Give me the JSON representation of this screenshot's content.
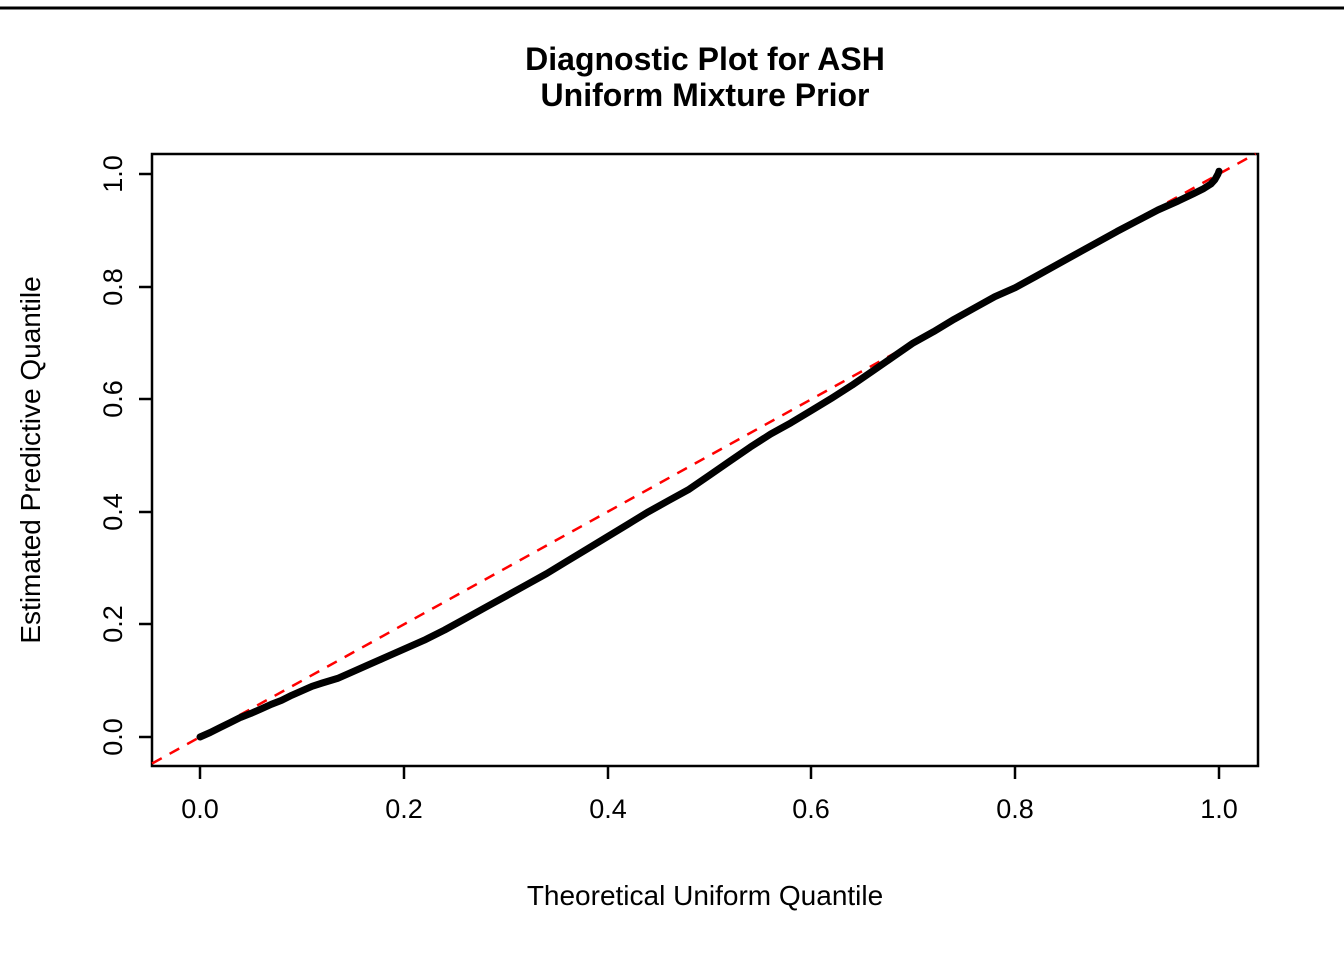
{
  "chart_data": {
    "type": "line",
    "title": "Diagnostic Plot for ASH",
    "subtitle": "Uniform Mixture Prior",
    "xlabel": "Theoretical Uniform Quantile",
    "ylabel": "Estimated Predictive Quantile",
    "xlim": [
      0,
      1
    ],
    "ylim": [
      0,
      1
    ],
    "grid": false,
    "legend": "none",
    "xtick_labels": [
      "0.0",
      "0.2",
      "0.4",
      "0.6",
      "0.8",
      "1.0"
    ],
    "ytick_labels": [
      "0.0",
      "0.2",
      "0.4",
      "0.6",
      "0.8",
      "1.0"
    ],
    "series": [
      {
        "name": "estimated-predictive-quantile-curve",
        "color": "#000000",
        "style": "solid",
        "width": 7,
        "points": [
          [
            0.0,
            0.0
          ],
          [
            0.01,
            0.008
          ],
          [
            0.02,
            0.017
          ],
          [
            0.03,
            0.026
          ],
          [
            0.04,
            0.035
          ],
          [
            0.05,
            0.042
          ],
          [
            0.06,
            0.05
          ],
          [
            0.07,
            0.058
          ],
          [
            0.08,
            0.065
          ],
          [
            0.09,
            0.074
          ],
          [
            0.1,
            0.082
          ],
          [
            0.11,
            0.09
          ],
          [
            0.12,
            0.096
          ],
          [
            0.135,
            0.104
          ],
          [
            0.15,
            0.116
          ],
          [
            0.165,
            0.128
          ],
          [
            0.18,
            0.14
          ],
          [
            0.2,
            0.156
          ],
          [
            0.22,
            0.172
          ],
          [
            0.24,
            0.19
          ],
          [
            0.26,
            0.21
          ],
          [
            0.28,
            0.23
          ],
          [
            0.3,
            0.25
          ],
          [
            0.32,
            0.27
          ],
          [
            0.34,
            0.29
          ],
          [
            0.36,
            0.312
          ],
          [
            0.38,
            0.334
          ],
          [
            0.4,
            0.356
          ],
          [
            0.42,
            0.378
          ],
          [
            0.44,
            0.4
          ],
          [
            0.46,
            0.42
          ],
          [
            0.48,
            0.44
          ],
          [
            0.5,
            0.465
          ],
          [
            0.52,
            0.49
          ],
          [
            0.54,
            0.515
          ],
          [
            0.56,
            0.538
          ],
          [
            0.58,
            0.558
          ],
          [
            0.6,
            0.58
          ],
          [
            0.62,
            0.602
          ],
          [
            0.64,
            0.625
          ],
          [
            0.66,
            0.65
          ],
          [
            0.68,
            0.675
          ],
          [
            0.7,
            0.7
          ],
          [
            0.72,
            0.72
          ],
          [
            0.74,
            0.742
          ],
          [
            0.76,
            0.762
          ],
          [
            0.78,
            0.782
          ],
          [
            0.8,
            0.798
          ],
          [
            0.82,
            0.818
          ],
          [
            0.84,
            0.838
          ],
          [
            0.86,
            0.858
          ],
          [
            0.88,
            0.878
          ],
          [
            0.9,
            0.898
          ],
          [
            0.92,
            0.917
          ],
          [
            0.94,
            0.936
          ],
          [
            0.96,
            0.952
          ],
          [
            0.975,
            0.965
          ],
          [
            0.985,
            0.974
          ],
          [
            0.992,
            0.982
          ],
          [
            0.996,
            0.99
          ],
          [
            0.999,
            1.0
          ],
          [
            1.0,
            1.005
          ]
        ]
      },
      {
        "name": "reference-diagonal",
        "color": "#FF0000",
        "style": "dashed",
        "width": 2.5,
        "points": [
          [
            -0.047,
            -0.047
          ],
          [
            1.036,
            1.036
          ]
        ]
      }
    ]
  }
}
